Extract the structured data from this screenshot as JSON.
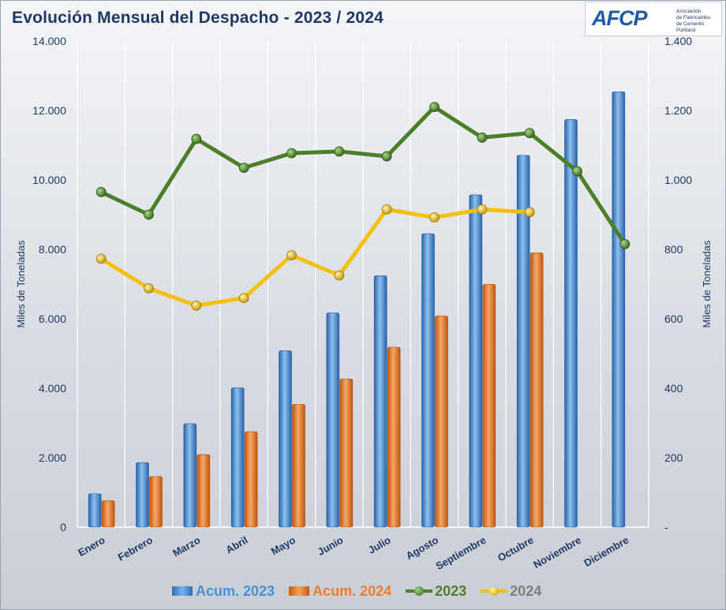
{
  "title": "Evolución Mensual del Despacho - 2023 / 2024",
  "logo": {
    "mark": "AFCP",
    "line1": "Asociación",
    "line2": "de Fabricantes",
    "line3": "de Cemento",
    "line4": "Portland"
  },
  "colors": {
    "acum_2023": "#4a90d9",
    "acum_2024": "#ed7d31",
    "line_2023": "#4d7f2b",
    "line_2024": "#f2c10e",
    "axis_text": "#1f3864"
  },
  "chart_data": {
    "type": "bar",
    "title": "Evolución Mensual del Despacho - 2023 / 2024",
    "categories": [
      "Enero",
      "Febrero",
      "Marzo",
      "Abril",
      "Mayo",
      "Junio",
      "Julio",
      "Agosto",
      "Septiembre",
      "Octubre",
      "Noviembre",
      "Diciembre"
    ],
    "ylabel_left": "Miles de Toneladas",
    "ylabel_right": "Miles de Toneladas",
    "ylim_left": [
      0,
      14000
    ],
    "ylim_right": [
      0,
      1400
    ],
    "yticks_left": [
      "0",
      "2.000",
      "4.000",
      "6.000",
      "8.000",
      "10.000",
      "12.000",
      "14.000"
    ],
    "yticks_right": [
      "-",
      "200",
      "400",
      "600",
      "800",
      "1.000",
      "1.200",
      "1.400"
    ],
    "grid": "vertical",
    "legend_position": "bottom",
    "bar_series": [
      {
        "name": "Acum. 2023",
        "axis": "left",
        "values": [
          960,
          1860,
          2980,
          4010,
          5080,
          6170,
          7240,
          8450,
          9570,
          10710,
          11740,
          12540
        ]
      },
      {
        "name": "Acum. 2024",
        "axis": "left",
        "values": [
          760,
          1460,
          2090,
          2750,
          3540,
          4270,
          5180,
          6080,
          6990,
          7900,
          null,
          null
        ]
      }
    ],
    "line_series": [
      {
        "name": "2023",
        "axis": "right",
        "values": [
          965,
          900,
          1118,
          1035,
          1077,
          1082,
          1068,
          1210,
          1122,
          1135,
          1025,
          815
        ]
      },
      {
        "name": "2024",
        "axis": "right",
        "values": [
          773,
          688,
          638,
          660,
          783,
          725,
          915,
          892,
          915,
          907,
          null,
          null
        ]
      }
    ]
  }
}
